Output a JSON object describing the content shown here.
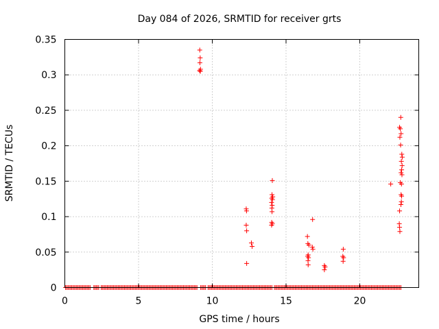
{
  "chart_data": {
    "type": "scatter",
    "title": "Day 084 of 2026, SRMTID for receiver grts",
    "xlabel": "GPS time / hours",
    "ylabel": "SRMTID / TECUs",
    "xlim": [
      0,
      24
    ],
    "ylim": [
      0,
      0.35
    ],
    "xticks": [
      0,
      5,
      10,
      15,
      20
    ],
    "xtick_labels": [
      "0",
      "5",
      "10",
      "15",
      "20"
    ],
    "yticks": [
      0,
      0.05,
      0.1,
      0.15,
      0.2,
      0.25,
      0.3,
      0.35
    ],
    "ytick_labels": [
      "0",
      "0.05",
      "0.1",
      "0.15",
      "0.2",
      "0.25",
      "0.3",
      "0.35"
    ],
    "grid": true,
    "marker": "+",
    "color": "#ff0000",
    "baseline": {
      "y": 0,
      "x_start": 0.05,
      "x_end": 22.85,
      "step": 0.0833,
      "gaps": [
        [
          1.75,
          1.9
        ],
        [
          2.3,
          2.45
        ],
        [
          9.0,
          9.15
        ],
        [
          9.55,
          9.65
        ],
        [
          14.05,
          14.15
        ]
      ]
    },
    "points": [
      {
        "x": 9.15,
        "y": 0.335
      },
      {
        "x": 9.18,
        "y": 0.324
      },
      {
        "x": 9.16,
        "y": 0.317
      },
      {
        "x": 9.2,
        "y": 0.308
      },
      {
        "x": 9.14,
        "y": 0.306
      },
      {
        "x": 9.19,
        "y": 0.305
      },
      {
        "x": 12.3,
        "y": 0.111
      },
      {
        "x": 12.32,
        "y": 0.108
      },
      {
        "x": 12.3,
        "y": 0.088
      },
      {
        "x": 12.33,
        "y": 0.08
      },
      {
        "x": 12.33,
        "y": 0.034
      },
      {
        "x": 12.65,
        "y": 0.063
      },
      {
        "x": 12.7,
        "y": 0.058
      },
      {
        "x": 14.07,
        "y": 0.151
      },
      {
        "x": 14.05,
        "y": 0.131
      },
      {
        "x": 14.1,
        "y": 0.128
      },
      {
        "x": 14.03,
        "y": 0.126
      },
      {
        "x": 14.08,
        "y": 0.124
      },
      {
        "x": 14.02,
        "y": 0.12
      },
      {
        "x": 14.06,
        "y": 0.116
      },
      {
        "x": 14.04,
        "y": 0.112
      },
      {
        "x": 14.05,
        "y": 0.107
      },
      {
        "x": 14.03,
        "y": 0.092
      },
      {
        "x": 14.07,
        "y": 0.09
      },
      {
        "x": 14.02,
        "y": 0.088
      },
      {
        "x": 16.45,
        "y": 0.072
      },
      {
        "x": 16.48,
        "y": 0.062
      },
      {
        "x": 16.55,
        "y": 0.06
      },
      {
        "x": 16.5,
        "y": 0.046
      },
      {
        "x": 16.47,
        "y": 0.044
      },
      {
        "x": 16.52,
        "y": 0.042
      },
      {
        "x": 16.49,
        "y": 0.038
      },
      {
        "x": 16.5,
        "y": 0.032
      },
      {
        "x": 16.8,
        "y": 0.096
      },
      {
        "x": 16.78,
        "y": 0.057
      },
      {
        "x": 16.82,
        "y": 0.054
      },
      {
        "x": 17.6,
        "y": 0.031
      },
      {
        "x": 17.65,
        "y": 0.029
      },
      {
        "x": 17.6,
        "y": 0.025
      },
      {
        "x": 18.88,
        "y": 0.054
      },
      {
        "x": 18.85,
        "y": 0.044
      },
      {
        "x": 18.9,
        "y": 0.042
      },
      {
        "x": 18.87,
        "y": 0.037
      },
      {
        "x": 22.1,
        "y": 0.146
      },
      {
        "x": 22.78,
        "y": 0.24
      },
      {
        "x": 22.7,
        "y": 0.226
      },
      {
        "x": 22.75,
        "y": 0.224
      },
      {
        "x": 22.8,
        "y": 0.217
      },
      {
        "x": 22.72,
        "y": 0.212
      },
      {
        "x": 22.77,
        "y": 0.201
      },
      {
        "x": 22.85,
        "y": 0.188
      },
      {
        "x": 22.88,
        "y": 0.184
      },
      {
        "x": 22.82,
        "y": 0.178
      },
      {
        "x": 22.87,
        "y": 0.172
      },
      {
        "x": 22.84,
        "y": 0.166
      },
      {
        "x": 22.8,
        "y": 0.162
      },
      {
        "x": 22.86,
        "y": 0.159
      },
      {
        "x": 22.75,
        "y": 0.148
      },
      {
        "x": 22.83,
        "y": 0.146
      },
      {
        "x": 22.8,
        "y": 0.131
      },
      {
        "x": 22.84,
        "y": 0.129
      },
      {
        "x": 22.82,
        "y": 0.121
      },
      {
        "x": 22.79,
        "y": 0.117
      },
      {
        "x": 22.7,
        "y": 0.108
      },
      {
        "x": 22.68,
        "y": 0.09
      },
      {
        "x": 22.7,
        "y": 0.085
      },
      {
        "x": 22.72,
        "y": 0.079
      }
    ]
  }
}
